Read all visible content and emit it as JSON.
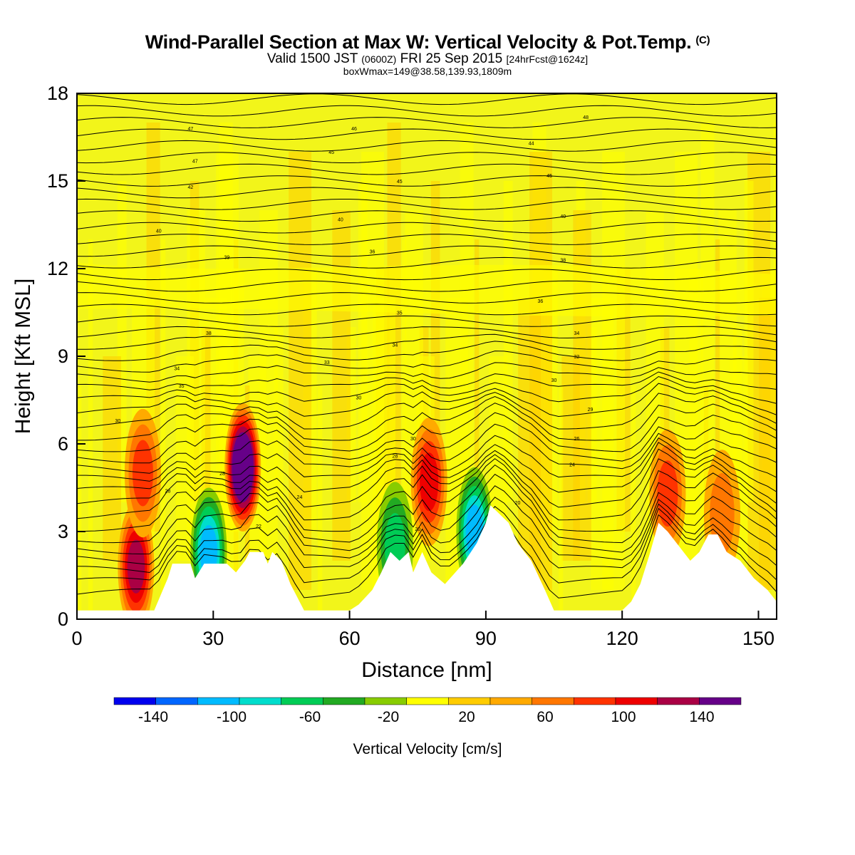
{
  "header": {
    "title": "Wind-Parallel Section at Max W: Vertical Velocity & Pot.Temp.",
    "title_mark": "(C)",
    "valid_a": "Valid 1500 JST",
    "valid_b": "(0600Z)",
    "valid_c": "FRI 25 Sep 2015",
    "valid_d": "[24hrFcst@1624z]",
    "box_info": "boxWmax=149@38.58,139.93,1809m"
  },
  "chart_data": {
    "type": "heatmap",
    "xlabel": "Distance [nm]",
    "ylabel": "Height [Kft MSL]",
    "xlim": [
      0,
      154
    ],
    "ylim": [
      0,
      18
    ],
    "x_ticks": [
      0,
      30,
      60,
      90,
      120,
      150
    ],
    "y_ticks": [
      0,
      3,
      6,
      9,
      12,
      15,
      18
    ],
    "colorbar": {
      "title": "Vertical Velocity [cm/s]",
      "min": -160,
      "max": 160,
      "step": 20,
      "tick_values": [
        -140,
        -100,
        -60,
        -20,
        20,
        60,
        100,
        140
      ],
      "colors": [
        "#0000ee",
        "#0066ff",
        "#00bbff",
        "#00ddcc",
        "#00cc55",
        "#22aa22",
        "#88cc00",
        "#ffff00",
        "#ffcc00",
        "#ffaa00",
        "#ff7700",
        "#ff3300",
        "#ee0000",
        "#aa0044",
        "#660088"
      ]
    },
    "terrain_kft": [
      [
        0,
        0.3
      ],
      [
        17,
        0.3
      ],
      [
        20,
        1.4
      ],
      [
        21,
        1.9
      ],
      [
        25,
        1.9
      ],
      [
        26,
        1.4
      ],
      [
        28,
        1.9
      ],
      [
        33,
        1.9
      ],
      [
        35,
        1.6
      ],
      [
        37,
        2.0
      ],
      [
        38,
        2.3
      ],
      [
        41,
        2.3
      ],
      [
        42,
        1.9
      ],
      [
        43,
        2.3
      ],
      [
        45,
        2.0
      ],
      [
        47,
        1.2
      ],
      [
        50,
        0.3
      ],
      [
        60,
        0.3
      ],
      [
        62,
        0.5
      ],
      [
        65,
        1.0
      ],
      [
        67,
        1.6
      ],
      [
        69,
        2.3
      ],
      [
        71,
        2.0
      ],
      [
        73,
        2.3
      ],
      [
        74,
        1.6
      ],
      [
        76,
        2.3
      ],
      [
        78,
        1.6
      ],
      [
        81,
        1.2
      ],
      [
        85,
        1.9
      ],
      [
        88,
        2.6
      ],
      [
        90,
        3.3
      ],
      [
        91,
        3.9
      ],
      [
        93,
        3.6
      ],
      [
        95,
        3.3
      ],
      [
        97,
        2.6
      ],
      [
        100,
        2.0
      ],
      [
        103,
        1.0
      ],
      [
        105,
        0.3
      ],
      [
        120,
        0.3
      ],
      [
        122,
        0.6
      ],
      [
        124,
        1.2
      ],
      [
        126,
        2.2
      ],
      [
        128,
        3.3
      ],
      [
        130,
        3.0
      ],
      [
        132,
        2.6
      ],
      [
        135,
        2.0
      ],
      [
        137,
        2.3
      ],
      [
        139,
        2.9
      ],
      [
        141,
        2.9
      ],
      [
        143,
        2.3
      ],
      [
        146,
        2.0
      ],
      [
        149,
        1.4
      ],
      [
        152,
        1.0
      ],
      [
        154,
        0.6
      ]
    ],
    "updrafts": [
      {
        "x": 36.5,
        "z": 5.2,
        "peak_cms": 149
      },
      {
        "x": 13,
        "z": 1.8,
        "peak_cms": 100
      },
      {
        "x": 77.5,
        "z": 4.7,
        "peak_cms": 80
      },
      {
        "x": 14.5,
        "z": 5.0,
        "peak_cms": 60
      },
      {
        "x": 130,
        "z": 4.3,
        "peak_cms": 45
      },
      {
        "x": 142,
        "z": 3.6,
        "peak_cms": 40
      }
    ],
    "downdrafts": [
      {
        "x": 29,
        "z": 2.3,
        "peak_cms": -100
      },
      {
        "x": 87.5,
        "z": 3.0,
        "peak_cms": -90
      },
      {
        "x": 70,
        "z": 2.5,
        "peak_cms": -60
      }
    ],
    "isentrope_labels": [
      {
        "x": 25,
        "z": 16.8,
        "text": "47"
      },
      {
        "x": 61,
        "z": 16.8,
        "text": "46"
      },
      {
        "x": 112,
        "z": 17.2,
        "text": "48"
      },
      {
        "x": 26,
        "z": 15.7,
        "text": "47"
      },
      {
        "x": 56,
        "z": 16.0,
        "text": "45"
      },
      {
        "x": 100,
        "z": 16.3,
        "text": "44"
      },
      {
        "x": 71,
        "z": 15.0,
        "text": "45"
      },
      {
        "x": 104,
        "z": 15.2,
        "text": "45"
      },
      {
        "x": 25,
        "z": 14.8,
        "text": "42"
      },
      {
        "x": 58,
        "z": 13.7,
        "text": "40"
      },
      {
        "x": 107,
        "z": 13.8,
        "text": "40"
      },
      {
        "x": 18,
        "z": 13.3,
        "text": "40"
      },
      {
        "x": 33,
        "z": 12.4,
        "text": "39"
      },
      {
        "x": 65,
        "z": 12.6,
        "text": "36"
      },
      {
        "x": 107,
        "z": 12.3,
        "text": "38"
      },
      {
        "x": 102,
        "z": 10.9,
        "text": "36"
      },
      {
        "x": 71,
        "z": 10.5,
        "text": "35"
      },
      {
        "x": 29,
        "z": 9.8,
        "text": "38"
      },
      {
        "x": 110,
        "z": 9.8,
        "text": "34"
      },
      {
        "x": 70,
        "z": 9.4,
        "text": "34"
      },
      {
        "x": 110,
        "z": 9.0,
        "text": "32"
      },
      {
        "x": 22,
        "z": 8.6,
        "text": "34"
      },
      {
        "x": 55,
        "z": 8.8,
        "text": "33"
      },
      {
        "x": 105,
        "z": 8.2,
        "text": "30"
      },
      {
        "x": 23,
        "z": 8.0,
        "text": "35"
      },
      {
        "x": 62,
        "z": 7.6,
        "text": "30"
      },
      {
        "x": 113,
        "z": 7.2,
        "text": "29"
      },
      {
        "x": 9,
        "z": 6.8,
        "text": "30"
      },
      {
        "x": 74,
        "z": 6.2,
        "text": "30"
      },
      {
        "x": 110,
        "z": 6.2,
        "text": "26"
      },
      {
        "x": 70,
        "z": 5.6,
        "text": "28"
      },
      {
        "x": 109,
        "z": 5.3,
        "text": "24"
      },
      {
        "x": 32,
        "z": 5.0,
        "text": "28"
      },
      {
        "x": 20,
        "z": 4.4,
        "text": "28"
      },
      {
        "x": 49,
        "z": 4.2,
        "text": "24"
      },
      {
        "x": 97,
        "z": 4.0,
        "text": "20"
      },
      {
        "x": 40,
        "z": 3.2,
        "text": "22"
      },
      {
        "x": 75,
        "z": 3.1,
        "text": "20"
      }
    ]
  }
}
